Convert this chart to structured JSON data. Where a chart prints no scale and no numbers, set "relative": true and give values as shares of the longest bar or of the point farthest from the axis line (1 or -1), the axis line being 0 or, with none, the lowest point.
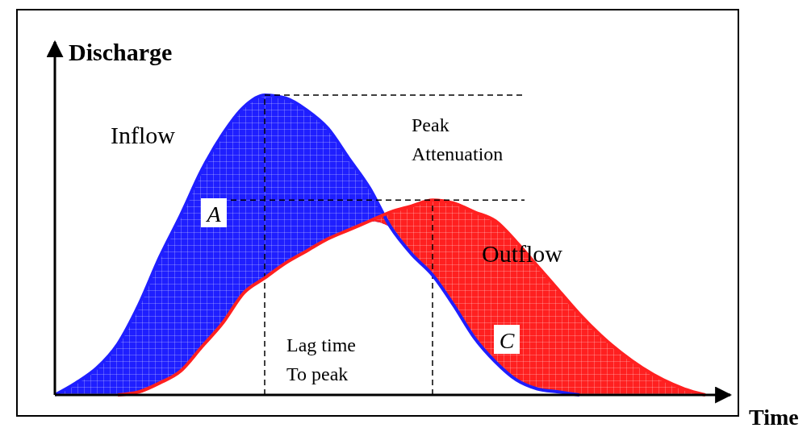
{
  "chart_data": {
    "type": "area",
    "relative": true,
    "xlabel": "Time",
    "ylabel": "Discharge",
    "categories": [
      null,
      null,
      null,
      null,
      null,
      null,
      null,
      null,
      null,
      null,
      null,
      null,
      null,
      null,
      null,
      null,
      null,
      null,
      null,
      null,
      null,
      null,
      null,
      null,
      null,
      null,
      null,
      null,
      null,
      null,
      null,
      null
    ],
    "series": [
      {
        "name": "Inflow",
        "color": "#1f1fff",
        "values": [
          0,
          0.04,
          0.09,
          0.17,
          0.3,
          0.46,
          0.6,
          0.75,
          0.87,
          0.96,
          1,
          0.99,
          0.95,
          0.89,
          0.79,
          0.69,
          0.56,
          0.47,
          0.4,
          0.3,
          0.19,
          0.11,
          0.05,
          0.02,
          0.01,
          0,
          null,
          null,
          null,
          null,
          null,
          null
        ]
      },
      {
        "name": "Outflow",
        "color": "#ff2020",
        "values": [
          null,
          null,
          null,
          0,
          0.01,
          0.04,
          0.08,
          0.16,
          0.24,
          0.34,
          0.39,
          0.44,
          0.48,
          0.52,
          0.55,
          0.58,
          0.61,
          0.63,
          0.65,
          0.64,
          0.61,
          0.58,
          0.51,
          0.43,
          0.35,
          0.27,
          0.2,
          0.14,
          0.09,
          0.05,
          0.02,
          0
        ]
      }
    ],
    "ref_lines": [
      {
        "axis": "y",
        "value": 1,
        "line_style": "dashed",
        "color": "#000000"
      },
      {
        "axis": "y",
        "value": 0.65,
        "line_style": "dashed",
        "color": "#000000"
      }
    ],
    "annotations": [
      "Peak Attenuation",
      "Lag time To peak",
      "A",
      "C"
    ]
  }
}
